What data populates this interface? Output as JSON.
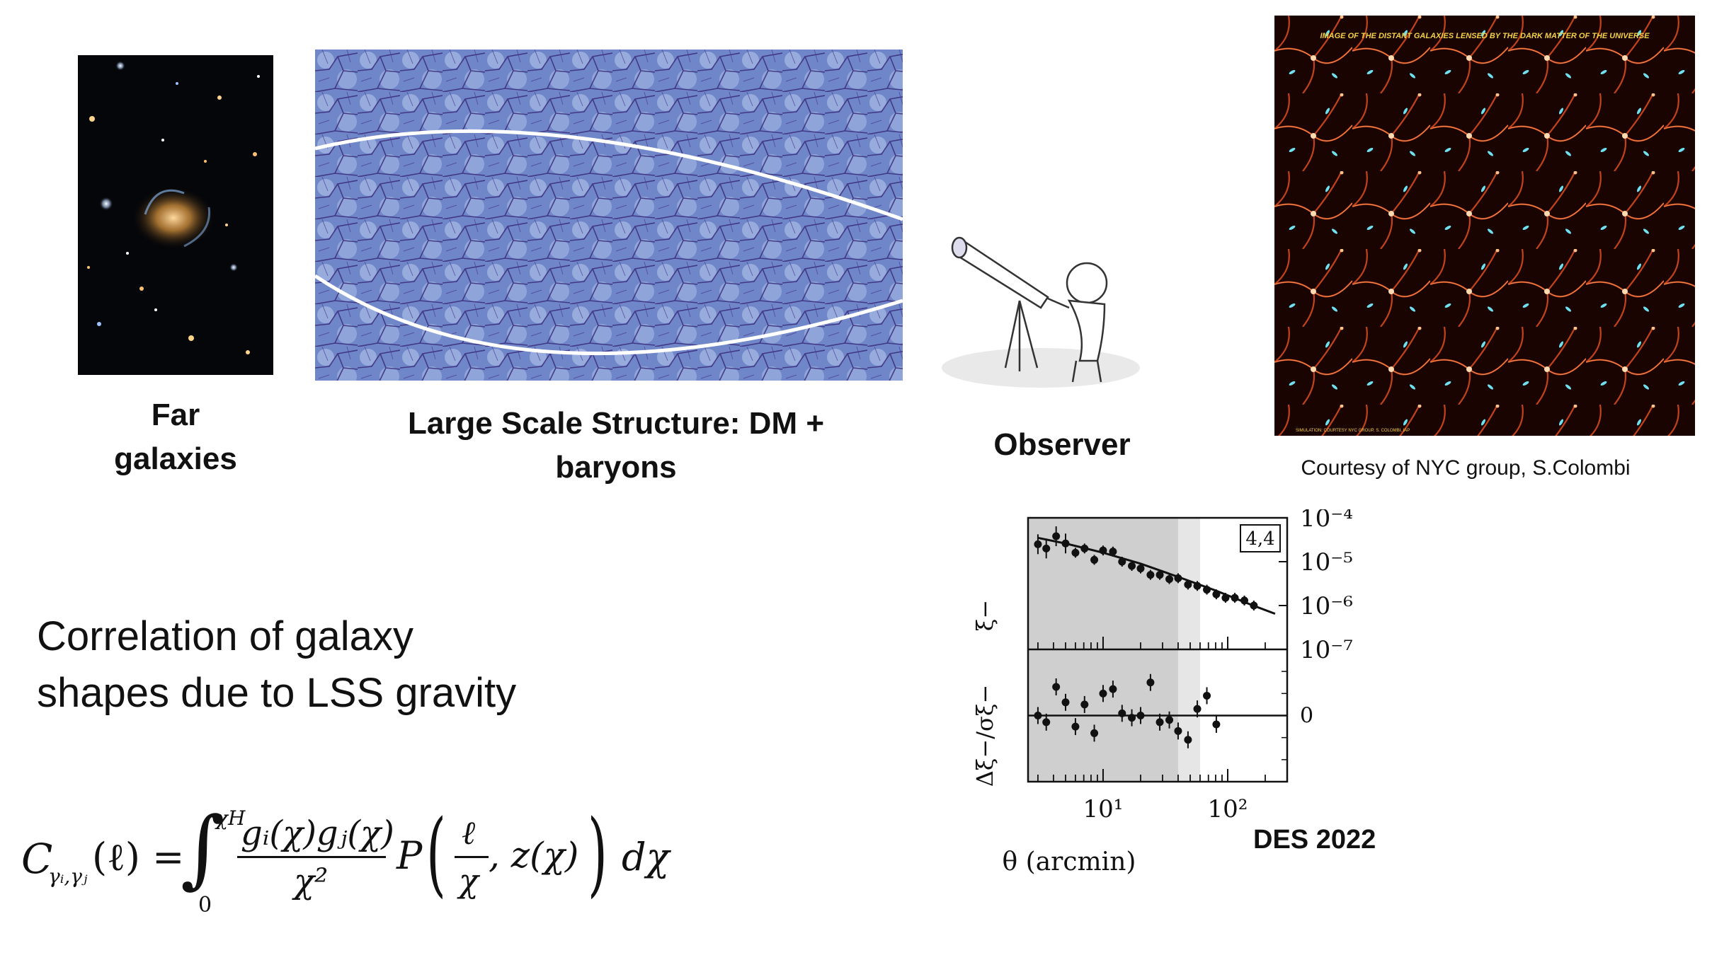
{
  "captions": {
    "far_galaxies_line1": "Far",
    "far_galaxies_line2": "galaxies",
    "lss_line1": "Large Scale Structure: DM +",
    "lss_line2": "baryons",
    "observer": "Observer",
    "courtesy": "Courtesy of NYC group, S.Colombi"
  },
  "simulation_image": {
    "overlay_title": "IMAGE OF THE DISTANT GALAXIES LENSED BY THE DARK MATTER OF THE UNIVERSE",
    "overlay_credit": "SIMULATION: COURTESY NYC GROUP, S. COLOMBI, IAP"
  },
  "main_text": {
    "line1": "Correlation of galaxy",
    "line2": "shapes due to LSS gravity"
  },
  "formula": {
    "lhs_C": "C",
    "lhs_sub": "γᵢ,γⱼ",
    "lhs_arg": "(ℓ) =",
    "integral": "∫",
    "upper_limit": "χH",
    "lower_limit": "0",
    "numerator": "gᵢ(χ)gⱼ(χ)",
    "denominator": "χ²",
    "P": "P",
    "frac_num": "ℓ",
    "frac_den": "χ",
    "after_frac": ", z(χ)",
    "dchi": "dχ"
  },
  "des_label": "DES 2022",
  "chart_data": {
    "type": "scatter",
    "panel_label": "4,4",
    "xlabel": "θ (arcmin)",
    "ylabel_top": "ξ−",
    "ylabel_bottom": "Δξ−/σξ−",
    "xscale": "log",
    "yscale_top": "log",
    "xlim": [
      2.5,
      300
    ],
    "ylim_top": [
      1e-07,
      0.0001
    ],
    "ylim_bottom": [
      -3,
      3
    ],
    "x_ticks": [
      "10¹",
      "10²"
    ],
    "y_ticks_top": [
      "10⁻⁴",
      "10⁻⁵",
      "10⁻⁶",
      "10⁻⁷"
    ],
    "y_ticks_bottom": [
      "0"
    ],
    "shaded_dark_xmax": 40,
    "shaded_light_xmax": 60,
    "points_top": [
      {
        "x": 3.0,
        "y": 2.5e-05
      },
      {
        "x": 3.5,
        "y": 2e-05
      },
      {
        "x": 4.2,
        "y": 3.8e-05
      },
      {
        "x": 5.0,
        "y": 2.6e-05
      },
      {
        "x": 6.0,
        "y": 1.6e-05
      },
      {
        "x": 7.1,
        "y": 2e-05
      },
      {
        "x": 8.5,
        "y": 1.1e-05
      },
      {
        "x": 10.0,
        "y": 1.8e-05
      },
      {
        "x": 12.0,
        "y": 1.7e-05
      },
      {
        "x": 14.2,
        "y": 1e-05
      },
      {
        "x": 17.0,
        "y": 8e-06
      },
      {
        "x": 20.0,
        "y": 7e-06
      },
      {
        "x": 24.0,
        "y": 5e-06
      },
      {
        "x": 28.5,
        "y": 5e-06
      },
      {
        "x": 34.0,
        "y": 4e-06
      },
      {
        "x": 40.0,
        "y": 4.2e-06
      },
      {
        "x": 48.0,
        "y": 3e-06
      },
      {
        "x": 57.0,
        "y": 2.8e-06
      },
      {
        "x": 68.0,
        "y": 2.3e-06
      },
      {
        "x": 81.0,
        "y": 1.8e-06
      },
      {
        "x": 96.0,
        "y": 1.5e-06
      },
      {
        "x": 114.0,
        "y": 1.5e-06
      },
      {
        "x": 136.0,
        "y": 1.3e-06
      },
      {
        "x": 162.0,
        "y": 1e-06
      }
    ],
    "model_top": [
      {
        "x": 3.0,
        "y": 3.5e-05
      },
      {
        "x": 5.0,
        "y": 2.6e-05
      },
      {
        "x": 10.0,
        "y": 1.6e-05
      },
      {
        "x": 20.0,
        "y": 9e-06
      },
      {
        "x": 40.0,
        "y": 4.5e-06
      },
      {
        "x": 80.0,
        "y": 2.2e-06
      },
      {
        "x": 160.0,
        "y": 1e-06
      },
      {
        "x": 240.0,
        "y": 6.5e-07
      }
    ],
    "points_bottom": [
      {
        "x": 3.0,
        "y": 0.0
      },
      {
        "x": 3.5,
        "y": -0.3
      },
      {
        "x": 4.2,
        "y": 1.3
      },
      {
        "x": 5.0,
        "y": 0.6
      },
      {
        "x": 6.0,
        "y": -0.5
      },
      {
        "x": 7.1,
        "y": 0.5
      },
      {
        "x": 8.5,
        "y": -0.8
      },
      {
        "x": 10.0,
        "y": 1.0
      },
      {
        "x": 12.0,
        "y": 1.2
      },
      {
        "x": 14.2,
        "y": 0.1
      },
      {
        "x": 17.0,
        "y": -0.1
      },
      {
        "x": 20.0,
        "y": 0.0
      },
      {
        "x": 24.0,
        "y": 1.5
      },
      {
        "x": 28.5,
        "y": -0.3
      },
      {
        "x": 34.0,
        "y": -0.2
      },
      {
        "x": 40.0,
        "y": -0.7
      },
      {
        "x": 48.0,
        "y": -1.1
      },
      {
        "x": 57.0,
        "y": 0.3
      },
      {
        "x": 68.0,
        "y": 0.9
      },
      {
        "x": 81.0,
        "y": -0.4
      }
    ]
  }
}
